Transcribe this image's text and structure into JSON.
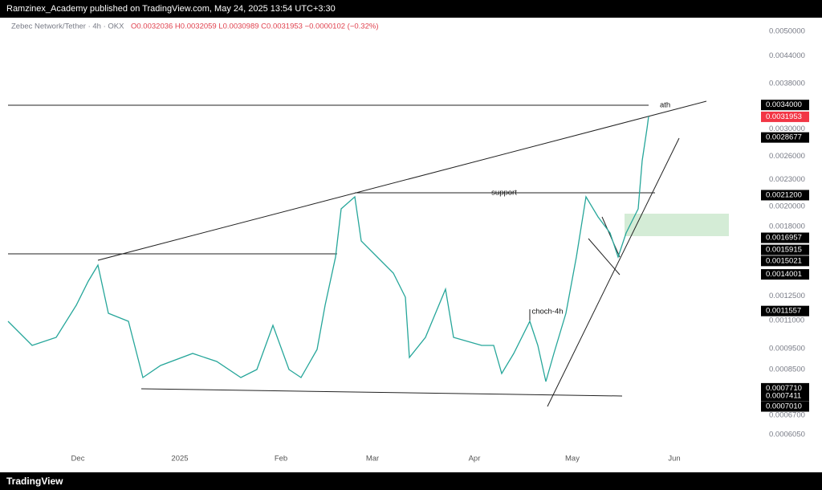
{
  "header": {
    "published": "Ramzinex_Academy published on TradingView.com, May 24, 2025 13:54 UTC+3:30"
  },
  "symbol": {
    "name": "Zebec Network/Tether · 4h · OKX",
    "ohlc": "O0.0032036 H0.0032059 L0.0030989 C0.0031953 −0.0000102 (−0.32%)"
  },
  "price_axis": [
    {
      "label": "0.0050000"
    },
    {
      "label": "0.0044000"
    },
    {
      "label": "0.0038000"
    },
    {
      "label": "0.0034000",
      "box": "black"
    },
    {
      "label": "0.0031953",
      "box": "red"
    },
    {
      "label": "0.0030000"
    },
    {
      "label": "0.0028677",
      "box": "black"
    },
    {
      "label": "0.0026000"
    },
    {
      "label": "0.0023000"
    },
    {
      "label": "0.0021200",
      "box": "black"
    },
    {
      "label": "0.0020000"
    },
    {
      "label": "0.0018000"
    },
    {
      "label": "0.0016957",
      "box": "black"
    },
    {
      "label": "0.0015915",
      "box": "black"
    },
    {
      "label": "0.0015021",
      "box": "black"
    },
    {
      "label": "0.0014001",
      "box": "black"
    },
    {
      "label": "0.0012500"
    },
    {
      "label": "0.0011557",
      "box": "black"
    },
    {
      "label": "0.0011000"
    },
    {
      "label": "0.0009500"
    },
    {
      "label": "0.0008500"
    },
    {
      "label": "0.0007710",
      "box": "black"
    },
    {
      "label": "0.0007411",
      "box": "black"
    },
    {
      "label": "0.0007010",
      "box": "black"
    },
    {
      "label": "0.0006700"
    },
    {
      "label": "0.0006050"
    }
  ],
  "time_axis": [
    "Dec",
    "2025",
    "Feb",
    "Mar",
    "Apr",
    "May",
    "Jun"
  ],
  "annotations": {
    "ath": "ath",
    "support": "support",
    "choch": "choch-4h"
  },
  "footer": {
    "brand": "TradingView"
  }
}
